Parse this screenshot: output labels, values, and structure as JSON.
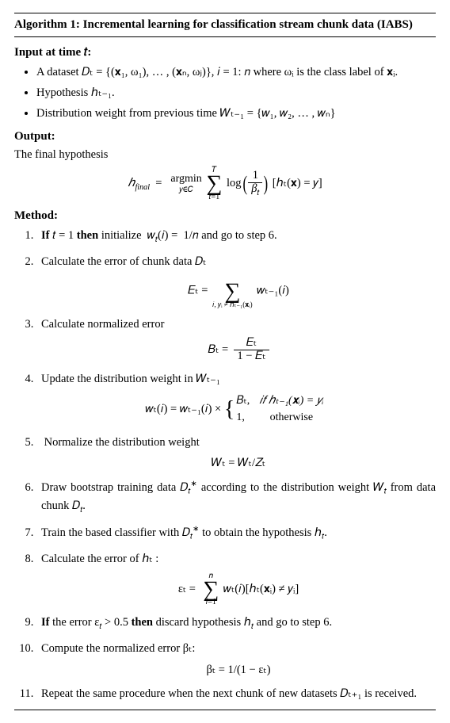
{
  "title": "Algorithm 1: Incremental learning for classification stream chunk data (IABS)",
  "input_head": "Input at time 𝑡:",
  "inputs": {
    "item1": "A dataset 𝐷ₜ = {(𝐱₁, ω₁), … , (𝐱ₙ, ωⱼ)}, 𝑖 = 1: 𝑛 where ωᵢ is the class label of 𝐱ᵢ.",
    "item2": "Hypothesis ℎₜ₋₁.",
    "item3": "Distribution weight from previous time 𝑊ₜ₋₁ = {𝑤₁, 𝑤₂, … , 𝑤ₙ}"
  },
  "output_head": "Output:",
  "output_text": "The final hypothesis",
  "output_eq": {
    "lhs": "ℎ_final",
    "argmin_top": "argmin",
    "argmin_bot": "𝑦∈𝐶",
    "sum_top": "𝑇",
    "sum_bot": "𝑡=1",
    "log_frac_num": "1",
    "log_frac_den": "β_t",
    "rhs_tail": "[ℎₜ(𝐱) = 𝑦]"
  },
  "method_head": "Method:",
  "steps": {
    "s1": "If 𝑡 = 1 then initialize  𝑤ₜ(𝑖) =  1/𝑛 and go to step 6.",
    "s2_text": "Calculate the error of chunk data 𝐷ₜ",
    "s2_eq": {
      "lhs": "𝐸ₜ =",
      "sum_bot": "𝑖, 𝑦ᵢ ≠ ℎₜ₋₁(𝐱ᵢ)",
      "rhs": "𝑤ₜ₋₁(𝑖)"
    },
    "s3_text": "Calculate normalized error",
    "s3_eq": {
      "lhs": "𝐵ₜ =",
      "num": "𝐸ₜ",
      "den": "1 − 𝐸ₜ"
    },
    "s4_text": "Update the distribution weight in 𝑊ₜ₋₁",
    "s4_eq": {
      "lhs": "𝑤ₜ(𝑖) =  𝑤ₜ₋₁(𝑖) ×",
      "case1_l": "𝐵ₜ,",
      "case1_r": "𝑖𝑓  ℎₜ₋₁(𝐱ᵢ) =  𝑦ᵢ",
      "case2_l": "1,",
      "case2_r": "otherwise"
    },
    "s5_text": "Normalize the distribution weight",
    "s5_eq": "𝑊ₜ = 𝑊ₜ/𝑍ₜ",
    "s6": "Draw bootstrap training data 𝐷ₜ* according to the distribution weight 𝑊ₜ from data chunk 𝐷ₜ.",
    "s7": "Train the based classifier with 𝐷ₜ* to obtain the hypothesis ℎₜ.",
    "s8_text": "Calculate the error of  ℎₜ :",
    "s8_eq": {
      "lhs": "εₜ =",
      "sum_top": "𝑛",
      "sum_bot": "𝑖=1",
      "rhs": "𝑤ₜ(𝑖)[ℎₜ(𝐱ᵢ) ≠ 𝑦ᵢ]"
    },
    "s9": "If the error εₜ > 0.5 then discard hypothesis ℎₜ and go to step 6.",
    "s10_text": "Compute the normalized error βₜ:",
    "s10_eq": "βₜ = 1/(1 − εₜ)",
    "s11": "Repeat the same procedure when the next chunk of new datasets 𝐷ₜ₊₁ is received."
  },
  "colors": {
    "text": "#000000",
    "background": "#ffffff",
    "rule": "#000000"
  },
  "typography": {
    "body_size_pt": 11,
    "title_size_pt": 11.5,
    "family": "Times New Roman"
  }
}
